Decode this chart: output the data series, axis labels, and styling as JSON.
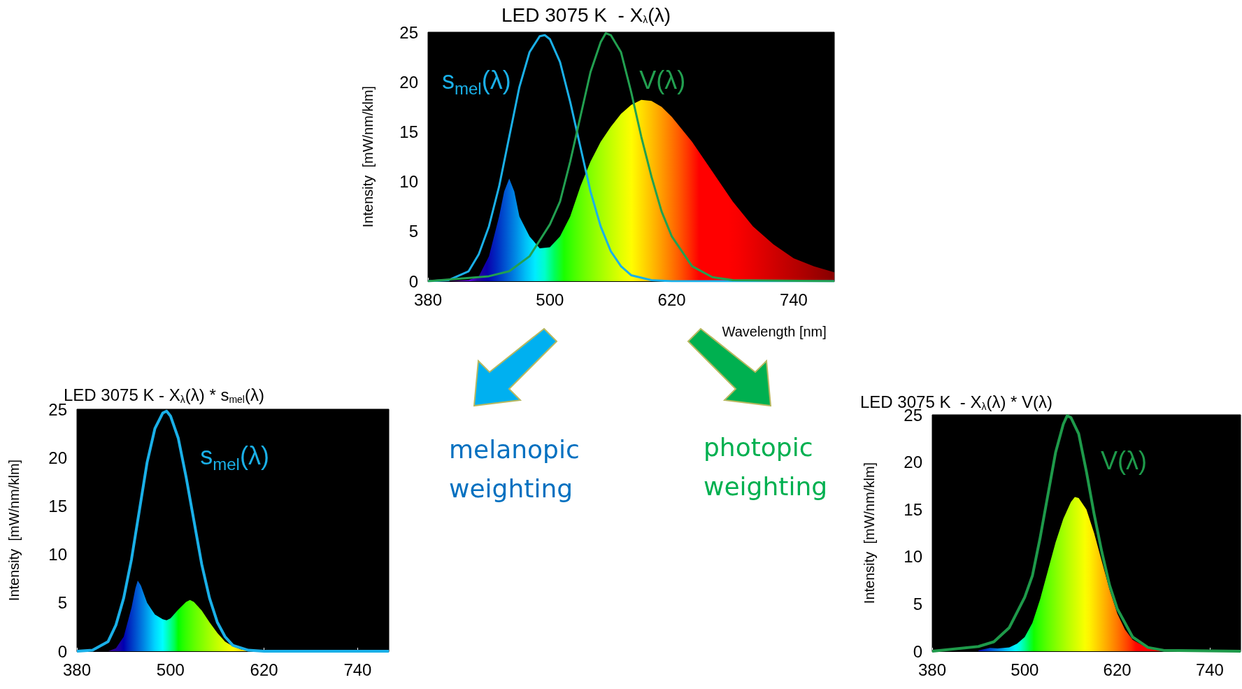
{
  "chart_data": [
    {
      "type": "area",
      "title": "LED 3075 K  - X$_{λ}$(λ)",
      "xlabel": "Wavelength [nm]",
      "ylabel": "Intensity  [mW/nm/klm]",
      "xlim": [
        380,
        780
      ],
      "xticks": [
        380,
        500,
        620,
        740
      ],
      "ylim": [
        0,
        25
      ],
      "yticks": [
        0,
        5,
        10,
        15,
        20,
        25
      ],
      "grid": false,
      "legend": false,
      "annotations": [
        "melanopic weighting",
        "photopic weighting"
      ],
      "series": [
        {
          "x": [
            400,
            420,
            430,
            440,
            450,
            455,
            460,
            465,
            470,
            480,
            490,
            500,
            510,
            520,
            530,
            540,
            550,
            560,
            570,
            580,
            590,
            600,
            610,
            620,
            640,
            660,
            680,
            700,
            720,
            740,
            760,
            780
          ],
          "values": [
            0,
            0.1,
            0.5,
            2.5,
            6.5,
            9,
            10.3,
            9,
            6.5,
            4.5,
            3.3,
            3.4,
            4.5,
            6.5,
            9.5,
            12,
            14,
            15.5,
            16.8,
            17.7,
            18.2,
            18.1,
            17.5,
            16.5,
            14,
            11,
            8,
            5.5,
            3.7,
            2.3,
            1.5,
            0.9
          ]
        },
        {
          "type": "line",
          "name": "s$_{mel}$(λ)",
          "color": "#1ab0e8",
          "x": [
            380,
            400,
            420,
            430,
            440,
            450,
            460,
            470,
            480,
            490,
            495,
            500,
            510,
            520,
            530,
            540,
            550,
            560,
            570,
            580,
            600,
            620,
            780
          ],
          "values": [
            0,
            0.1,
            1,
            2.7,
            5.5,
            9.5,
            14.5,
            19.5,
            23,
            24.6,
            24.7,
            24.3,
            22,
            18,
            13.5,
            9,
            5.5,
            3,
            1.5,
            0.6,
            0.1,
            0,
            0
          ]
        },
        {
          "type": "line",
          "name": "V(λ)",
          "color": "#22a050",
          "x": [
            380,
            440,
            460,
            480,
            500,
            510,
            520,
            530,
            540,
            550,
            555,
            560,
            570,
            580,
            590,
            600,
            610,
            620,
            640,
            660,
            680,
            780
          ],
          "values": [
            0,
            0.5,
            1,
            2.5,
            5.7,
            8,
            12,
            16.5,
            21,
            24,
            24.9,
            24.7,
            23,
            19,
            14.5,
            10.5,
            7,
            4.5,
            1.5,
            0.4,
            0.1,
            0
          ]
        }
      ]
    },
    {
      "type": "area",
      "title": "LED 3075 K - X$_{λ}$(λ) * s$_{mel}$(λ)",
      "ylabel": "Intensity  [mW/nm/klm]",
      "xlim": [
        380,
        780
      ],
      "xticks": [
        380,
        500,
        620,
        740
      ],
      "ylim": [
        0,
        25
      ],
      "yticks": [
        0,
        5,
        10,
        15,
        20,
        25
      ],
      "grid": false,
      "legend": false,
      "series": [
        {
          "x": [
            420,
            430,
            440,
            450,
            455,
            458,
            462,
            470,
            480,
            490,
            495,
            500,
            510,
            520,
            525,
            530,
            540,
            550,
            560,
            570,
            580,
            590,
            600,
            620
          ],
          "values": [
            0,
            0.3,
            1.5,
            4.5,
            6.5,
            7.3,
            6.8,
            5,
            3.8,
            3.3,
            3.2,
            3.4,
            4.3,
            5.1,
            5.3,
            5.1,
            4.2,
            3,
            1.9,
            1,
            0.5,
            0.2,
            0.05,
            0
          ]
        },
        {
          "type": "line",
          "name": "s$_{mel}$(λ)",
          "color": "#1ab0e8",
          "x": [
            380,
            400,
            420,
            430,
            440,
            450,
            460,
            470,
            480,
            490,
            495,
            500,
            510,
            520,
            530,
            540,
            550,
            560,
            570,
            580,
            600,
            620,
            780
          ],
          "values": [
            0,
            0.1,
            1,
            2.7,
            5.5,
            9.5,
            14.5,
            19.5,
            23,
            24.6,
            24.8,
            24.3,
            22,
            18,
            13.5,
            9,
            5.5,
            3,
            1.5,
            0.6,
            0.1,
            0,
            0
          ]
        }
      ]
    },
    {
      "type": "area",
      "title": "LED 3075 K  - X$_{λ}$(λ) * V(λ)",
      "ylabel": "Intensity  [mW/nm/klm]",
      "xlim": [
        380,
        780
      ],
      "xticks": [
        380,
        500,
        620,
        740
      ],
      "ylim": [
        0,
        25
      ],
      "yticks": [
        0,
        5,
        10,
        15,
        20,
        25
      ],
      "grid": false,
      "legend": false,
      "series": [
        {
          "x": [
            440,
            455,
            465,
            480,
            490,
            500,
            510,
            520,
            530,
            540,
            550,
            560,
            565,
            570,
            580,
            590,
            600,
            610,
            620,
            630,
            640,
            660,
            680
          ],
          "values": [
            0.1,
            0.35,
            0.3,
            0.4,
            0.8,
            1.5,
            3,
            5.5,
            8.5,
            11.5,
            14,
            15.8,
            16.3,
            16.2,
            15,
            12.5,
            9.5,
            6.5,
            4,
            2.3,
            1.2,
            0.3,
            0
          ]
        },
        {
          "type": "line",
          "name": "V(λ)",
          "color": "#1e9a4a",
          "x": [
            380,
            440,
            460,
            480,
            500,
            510,
            520,
            530,
            540,
            550,
            555,
            560,
            570,
            580,
            590,
            600,
            610,
            620,
            640,
            660,
            680,
            780
          ],
          "values": [
            0,
            0.5,
            1,
            2.5,
            5.7,
            8,
            12,
            16.5,
            21,
            24,
            24.9,
            24.7,
            23,
            19,
            14.5,
            10.5,
            7,
            4.5,
            1.5,
            0.4,
            0.1,
            0
          ]
        }
      ]
    }
  ]
}
